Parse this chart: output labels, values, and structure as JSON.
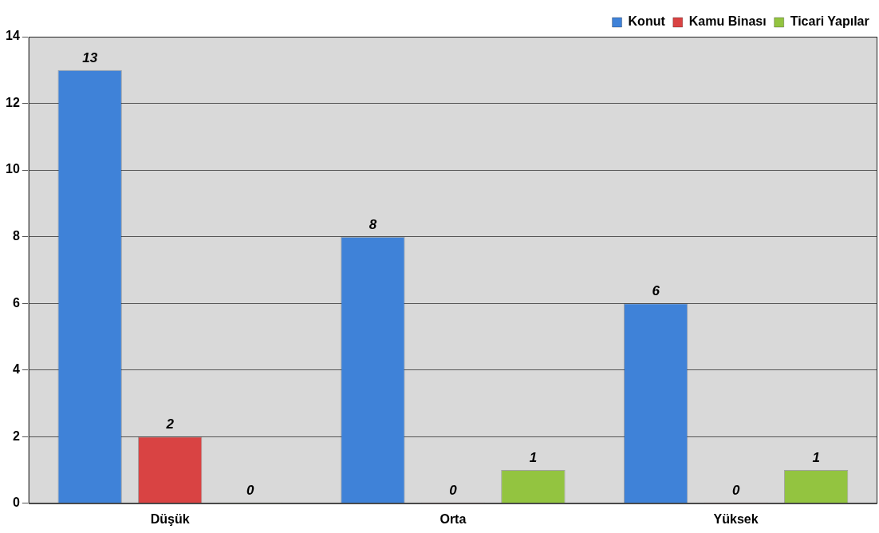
{
  "chart_data": {
    "type": "bar",
    "categories": [
      "Düşük",
      "Orta",
      "Yüksek"
    ],
    "series": [
      {
        "name": "Konut",
        "color": "#3f82d8",
        "values": [
          13,
          8,
          6
        ]
      },
      {
        "name": "Kamu Binası",
        "color": "#d94343",
        "values": [
          2,
          0,
          0
        ]
      },
      {
        "name": "Ticari Yapılar",
        "color": "#93c440",
        "values": [
          0,
          1,
          1
        ]
      }
    ],
    "ylim": [
      0,
      14
    ],
    "yticks": [
      0,
      2,
      4,
      6,
      8,
      10,
      12,
      14
    ],
    "grid": "y",
    "legend": "top right",
    "data_labels": true
  }
}
